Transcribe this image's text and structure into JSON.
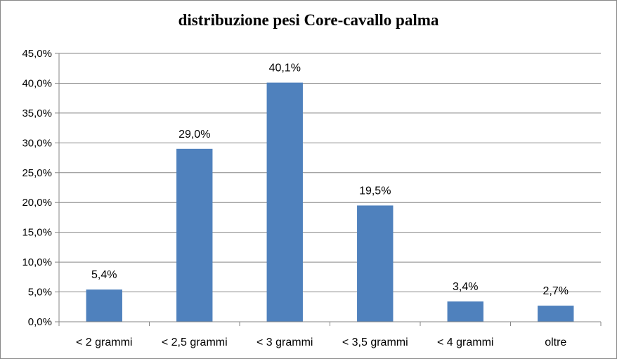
{
  "chart_data": {
    "type": "bar",
    "title": "distribuzione pesi Core-cavallo palma",
    "xlabel": "",
    "ylabel": "",
    "categories": [
      "< 2 grammi",
      "< 2,5 grammi",
      "< 3 grammi",
      "< 3,5 grammi",
      "< 4 grammi",
      "oltre"
    ],
    "values": [
      5.4,
      29.0,
      40.1,
      19.5,
      3.4,
      2.7
    ],
    "data_labels": [
      "5,4%",
      "29,0%",
      "40,1%",
      "19,5%",
      "3,4%",
      "2,7%"
    ],
    "ylim": [
      0,
      45
    ],
    "yticks": [
      0,
      5,
      10,
      15,
      20,
      25,
      30,
      35,
      40,
      45
    ],
    "ytick_labels": [
      "0,0%",
      "5,0%",
      "10,0%",
      "15,0%",
      "20,0%",
      "25,0%",
      "30,0%",
      "35,0%",
      "40,0%",
      "45,0%"
    ],
    "grid": true,
    "legend": "none",
    "bar_color": "#4f81bd"
  }
}
